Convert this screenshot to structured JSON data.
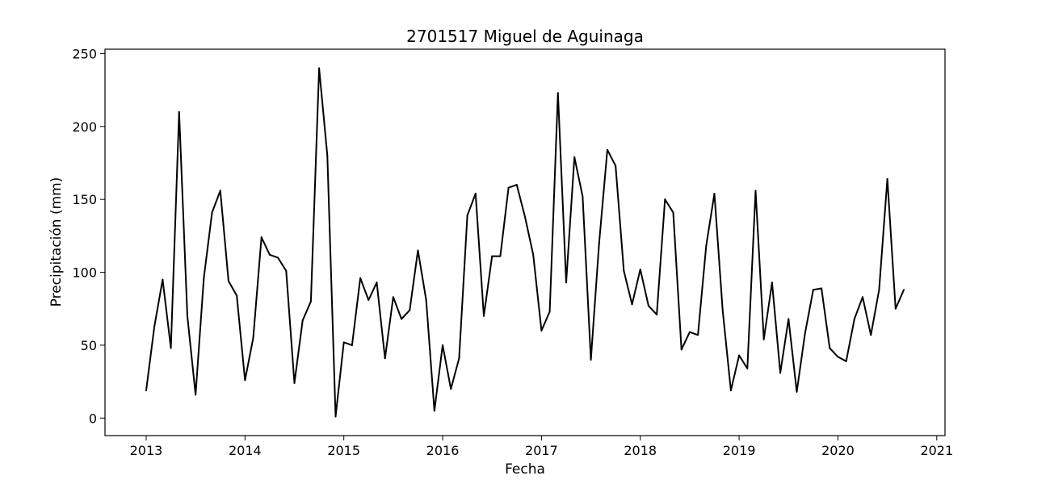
{
  "chart_data": {
    "type": "line",
    "title": "2701517 Miguel de Aguinaga",
    "xlabel": "Fecha",
    "ylabel": "Precipitación (mm)",
    "x_ticks": [
      "2013",
      "2014",
      "2015",
      "2016",
      "2017",
      "2018",
      "2019",
      "2020",
      "2021"
    ],
    "y_ticks": [
      "0",
      "50",
      "100",
      "150",
      "200",
      "250"
    ],
    "xlim": [
      "2012-08",
      "2021-02"
    ],
    "ylim": [
      -12,
      253
    ],
    "grid": false,
    "color": "#000000",
    "series": [
      {
        "x": [
          "2013-01",
          "2013-02",
          "2013-03",
          "2013-04",
          "2013-05",
          "2013-06",
          "2013-07",
          "2013-08",
          "2013-09",
          "2013-10",
          "2013-11",
          "2013-12",
          "2014-01",
          "2014-02",
          "2014-03",
          "2014-04",
          "2014-05",
          "2014-06",
          "2014-07",
          "2014-08",
          "2014-09",
          "2014-10",
          "2014-11",
          "2014-12",
          "2015-01",
          "2015-02",
          "2015-03",
          "2015-04",
          "2015-05",
          "2015-06",
          "2015-07",
          "2015-08",
          "2015-09",
          "2015-10",
          "2015-11",
          "2015-12",
          "2016-01",
          "2016-02",
          "2016-03",
          "2016-04",
          "2016-05",
          "2016-06",
          "2016-07",
          "2016-08",
          "2016-09",
          "2016-10",
          "2016-11",
          "2016-12",
          "2017-01",
          "2017-02",
          "2017-03",
          "2017-04",
          "2017-05",
          "2017-06",
          "2017-07",
          "2017-08",
          "2017-09",
          "2017-10",
          "2017-11",
          "2017-12",
          "2018-01",
          "2018-02",
          "2018-03",
          "2018-04",
          "2018-05",
          "2018-06",
          "2018-07",
          "2018-08",
          "2018-09",
          "2018-10",
          "2018-11",
          "2018-12",
          "2019-01",
          "2019-02",
          "2019-03",
          "2019-04",
          "2019-05",
          "2019-06",
          "2019-07",
          "2019-08",
          "2019-09",
          "2019-10",
          "2019-11",
          "2019-12",
          "2020-01",
          "2020-02",
          "2020-03",
          "2020-04",
          "2020-05",
          "2020-06",
          "2020-07",
          "2020-08",
          "2020-09"
        ],
        "values": [
          19,
          63,
          95,
          48,
          210,
          70,
          16,
          96,
          141,
          156,
          94,
          84,
          26,
          55,
          124,
          112,
          110,
          101,
          24,
          67,
          80,
          240,
          180,
          1,
          52,
          50,
          96,
          81,
          93,
          41,
          83,
          68,
          74,
          115,
          81,
          5,
          50,
          20,
          41,
          139,
          154,
          70,
          111,
          111,
          158,
          160,
          138,
          112,
          60,
          73,
          223,
          93,
          179,
          152,
          40,
          120,
          184,
          173,
          101,
          78,
          102,
          77,
          71,
          150,
          141,
          47,
          59,
          57,
          118,
          154,
          74,
          19,
          43,
          34,
          156,
          54,
          93,
          31,
          68,
          18,
          58,
          88,
          89,
          48,
          42,
          39,
          68,
          83,
          57,
          88,
          164,
          75,
          88
        ]
      }
    ]
  }
}
